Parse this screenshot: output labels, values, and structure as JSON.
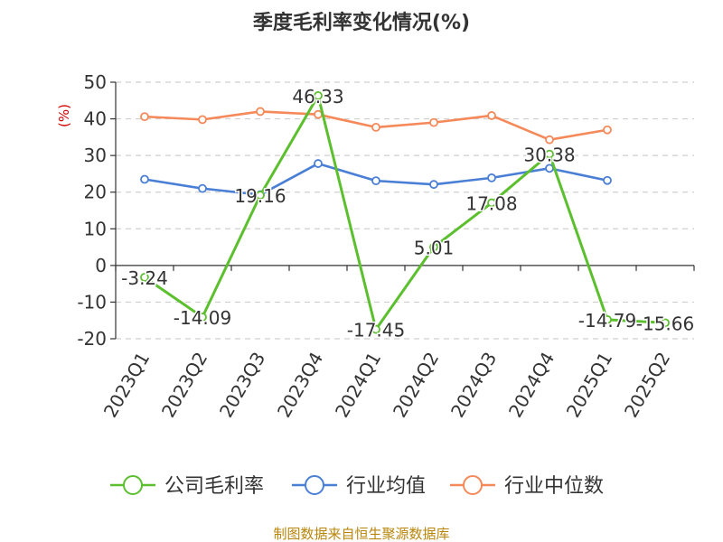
{
  "chart_data": {
    "type": "line",
    "title": "季度毛利率变化情况(%)",
    "ylabel": "(%)",
    "xlabel": "",
    "categories": [
      "2023Q1",
      "2023Q2",
      "2023Q3",
      "2023Q4",
      "2024Q1",
      "2024Q2",
      "2024Q3",
      "2024Q4",
      "2025Q1",
      "2025Q2"
    ],
    "ylim": [
      -20,
      50
    ],
    "yticks": [
      -20,
      -10,
      0,
      10,
      20,
      30,
      40,
      50
    ],
    "grid": true,
    "legend_position": "bottom",
    "series": [
      {
        "name": "公司毛利率",
        "color": "#5bbf2e",
        "values": [
          -3.24,
          -14.09,
          19.16,
          46.33,
          -17.45,
          5.01,
          17.08,
          30.38,
          -14.79,
          -15.66
        ],
        "labels": [
          "-3.24",
          "-14.09",
          "19.16",
          "46.33",
          "-17.45",
          "5.01",
          "17.08",
          "30.38",
          "-14.79",
          "-15.66"
        ]
      },
      {
        "name": "行业均值",
        "color": "#4a7fd6",
        "values": [
          23.5,
          21.0,
          19.3,
          27.8,
          23.1,
          22.1,
          23.9,
          26.5,
          23.2,
          null
        ]
      },
      {
        "name": "行业中位数",
        "color": "#f5895a",
        "values": [
          40.6,
          39.8,
          42.0,
          41.2,
          37.7,
          39.0,
          40.9,
          34.3,
          37.0,
          null
        ]
      }
    ]
  },
  "footer": {
    "source": "制图数据来自恒生聚源数据库",
    "source_color": "#b8860b"
  }
}
